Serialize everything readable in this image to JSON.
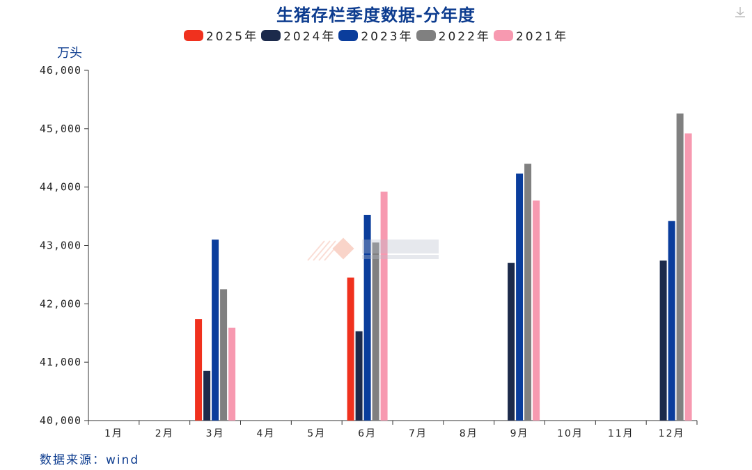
{
  "title": "生猪存栏季度数据-分年度",
  "unit_label": "万头",
  "source_label": "数据来源：wind",
  "colors": {
    "title": "#0d3c8f",
    "unit": "#0d3c8f",
    "source": "#0d3c8f",
    "axis": "#333333"
  },
  "icons": {
    "download": "download-icon"
  },
  "chart_data": {
    "type": "bar",
    "title": "生猪存栏季度数据-分年度",
    "ylabel": "万头",
    "ylim": [
      40000,
      46000
    ],
    "yticks": [
      40000,
      41000,
      42000,
      43000,
      44000,
      45000,
      46000
    ],
    "ytick_labels": [
      "40,000",
      "41,000",
      "42,000",
      "43,000",
      "44,000",
      "45,000",
      "46,000"
    ],
    "categories": [
      "1月",
      "2月",
      "3月",
      "4月",
      "5月",
      "6月",
      "7月",
      "8月",
      "9月",
      "10月",
      "11月",
      "12月"
    ],
    "grid": false,
    "legend_position": "top-center",
    "series": [
      {
        "name": "2025年",
        "color": "#f0311e",
        "values": [
          null,
          null,
          41740,
          null,
          null,
          42450,
          null,
          null,
          null,
          null,
          null,
          null
        ]
      },
      {
        "name": "2024年",
        "color": "#1c2a4b",
        "values": [
          null,
          null,
          40850,
          null,
          null,
          41530,
          null,
          null,
          42700,
          null,
          null,
          42740
        ]
      },
      {
        "name": "2023年",
        "color": "#0a3d9c",
        "values": [
          null,
          null,
          43100,
          null,
          null,
          43520,
          null,
          null,
          44230,
          null,
          null,
          43420
        ]
      },
      {
        "name": "2022年",
        "color": "#808080",
        "values": [
          null,
          null,
          42250,
          null,
          null,
          43050,
          null,
          null,
          44400,
          null,
          null,
          45260
        ]
      },
      {
        "name": "2021年",
        "color": "#f799b0",
        "values": [
          null,
          null,
          41590,
          null,
          null,
          43920,
          null,
          null,
          43770,
          null,
          null,
          44920
        ]
      }
    ]
  }
}
